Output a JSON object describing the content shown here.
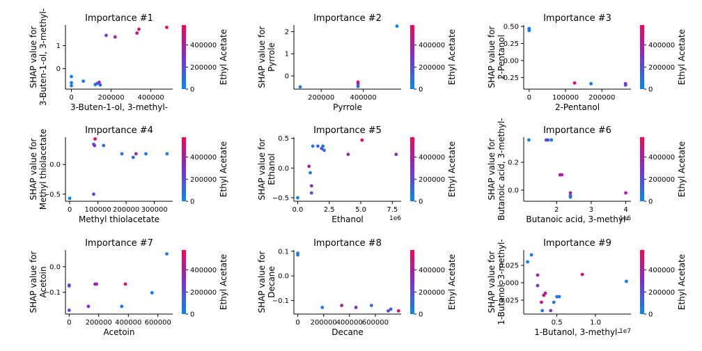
{
  "colorbar": {
    "label": "Ethyl Acetate",
    "ticks": [
      "0",
      "200000",
      "400000"
    ],
    "colors": [
      "#008afb",
      "#7a2fd6",
      "#ff0052"
    ],
    "min": 0,
    "max": 580000
  },
  "chart_data": [
    {
      "type": "scatter",
      "title": "Importance #1",
      "xlabel": "3-Buten-1-ol, 3-methyl-",
      "ylabel": [
        "SHAP value for",
        "3-Buten-1-ol, 3-methyl-"
      ],
      "xlim": [
        -30000,
        510000
      ],
      "ylim": [
        -0.9,
        1.9
      ],
      "xticks": [
        {
          "v": 0,
          "l": "0"
        },
        {
          "v": 200000,
          "l": "200000"
        },
        {
          "v": 400000,
          "l": "400000"
        }
      ],
      "yticks": [
        {
          "v": 1,
          "l": "1"
        },
        {
          "v": 0,
          "l": "0"
        }
      ],
      "x_offset_label": "",
      "points": [
        {
          "x": 0,
          "y": -0.35,
          "c": 20000
        },
        {
          "x": 0,
          "y": -0.62,
          "c": 50000
        },
        {
          "x": 0,
          "y": -0.75,
          "c": 30000
        },
        {
          "x": 60000,
          "y": -0.55,
          "c": 60000
        },
        {
          "x": 120000,
          "y": -0.7,
          "c": 80000
        },
        {
          "x": 130000,
          "y": -0.65,
          "c": 120000
        },
        {
          "x": 140000,
          "y": -0.6,
          "c": 380000
        },
        {
          "x": 145000,
          "y": -0.72,
          "c": 90000
        },
        {
          "x": 175000,
          "y": 1.45,
          "c": 250000
        },
        {
          "x": 220000,
          "y": 1.38,
          "c": 420000
        },
        {
          "x": 330000,
          "y": 1.55,
          "c": 470000
        },
        {
          "x": 340000,
          "y": 1.72,
          "c": 500000
        },
        {
          "x": 480000,
          "y": 1.8,
          "c": 540000
        }
      ]
    },
    {
      "type": "scatter",
      "title": "Importance #2",
      "xlabel": "Pyrrole",
      "ylabel": [
        "SHAP value for",
        "Pyrrole"
      ],
      "xlim": [
        70000,
        580000
      ],
      "ylim": [
        -0.6,
        2.3
      ],
      "xticks": [
        {
          "v": 200000,
          "l": "200000"
        },
        {
          "v": 400000,
          "l": "400000"
        }
      ],
      "yticks": [
        {
          "v": 2,
          "l": "2"
        },
        {
          "v": 1,
          "l": "1"
        },
        {
          "v": 0,
          "l": "0"
        }
      ],
      "x_offset_label": "",
      "points": [
        {
          "x": 100000,
          "y": -0.5,
          "c": 50000
        },
        {
          "x": 375000,
          "y": -0.28,
          "c": 540000
        },
        {
          "x": 375000,
          "y": -0.35,
          "c": 400000
        },
        {
          "x": 375000,
          "y": -0.45,
          "c": 200000
        },
        {
          "x": 375000,
          "y": -0.48,
          "c": 100000
        },
        {
          "x": 560000,
          "y": 2.25,
          "c": 30000
        }
      ]
    },
    {
      "type": "scatter",
      "title": "Importance #3",
      "xlabel": "2-Pentanol",
      "ylabel": [
        "SHAP value for",
        "2-Pentanol"
      ],
      "xlim": [
        -15000,
        280000
      ],
      "ylim": [
        -0.42,
        0.52
      ],
      "xticks": [
        {
          "v": 0,
          "l": "0"
        },
        {
          "v": 100000,
          "l": "100000"
        },
        {
          "v": 200000,
          "l": "200000"
        }
      ],
      "yticks": [
        {
          "v": 0.5,
          "l": "0.50"
        },
        {
          "v": 0.25,
          "l": "0.25"
        },
        {
          "v": 0,
          "l": "0.00"
        },
        {
          "v": -0.25,
          "l": "−0.25"
        }
      ],
      "x_offset_label": "",
      "points": [
        {
          "x": 0,
          "y": 0.47,
          "c": 30000
        },
        {
          "x": 0,
          "y": 0.45,
          "c": 60000
        },
        {
          "x": 0,
          "y": 0.44,
          "c": 90000
        },
        {
          "x": 125000,
          "y": -0.33,
          "c": 500000
        },
        {
          "x": 170000,
          "y": -0.34,
          "c": 60000
        },
        {
          "x": 265000,
          "y": -0.34,
          "c": 400000
        },
        {
          "x": 265000,
          "y": -0.36,
          "c": 200000
        }
      ]
    },
    {
      "type": "scatter",
      "title": "Importance #4",
      "xlabel": "Methyl thiolacetate",
      "ylabel": [
        "SHAP value for",
        "Methyl thiolacetate"
      ],
      "xlim": [
        -15000,
        365000
      ],
      "ylim": [
        -0.62,
        0.46
      ],
      "xticks": [
        {
          "v": 0,
          "l": "0"
        },
        {
          "v": 100000,
          "l": "100000"
        },
        {
          "v": 200000,
          "l": "200000"
        },
        {
          "v": 300000,
          "l": "300000"
        }
      ],
      "yticks": [
        {
          "v": 0,
          "l": "0.0"
        },
        {
          "v": -0.5,
          "l": "−0.5"
        }
      ],
      "x_offset_label": "",
      "points": [
        {
          "x": 0,
          "y": -0.57,
          "c": 20000
        },
        {
          "x": 85000,
          "y": -0.5,
          "c": 250000
        },
        {
          "x": 85000,
          "y": 0.34,
          "c": 120000
        },
        {
          "x": 88000,
          "y": 0.32,
          "c": 300000
        },
        {
          "x": 90000,
          "y": 0.43,
          "c": 540000
        },
        {
          "x": 120000,
          "y": 0.32,
          "c": 90000
        },
        {
          "x": 185000,
          "y": 0.18,
          "c": 60000
        },
        {
          "x": 225000,
          "y": 0.12,
          "c": 80000
        },
        {
          "x": 235000,
          "y": 0.18,
          "c": 350000
        },
        {
          "x": 270000,
          "y": 0.18,
          "c": 60000
        },
        {
          "x": 345000,
          "y": 0.18,
          "c": 40000
        }
      ]
    },
    {
      "type": "scatter",
      "title": "Importance #5",
      "xlabel": "Ethanol",
      "ylabel": [
        "SHAP value for",
        "Ethanol"
      ],
      "xlim": [
        -300000,
        8200000
      ],
      "ylim": [
        -0.56,
        0.52
      ],
      "xticks": [
        {
          "v": 0,
          "l": "0.0"
        },
        {
          "v": 2500000,
          "l": "2.5"
        },
        {
          "v": 5000000,
          "l": "5.0"
        },
        {
          "v": 7500000,
          "l": "7.5"
        }
      ],
      "yticks": [
        {
          "v": 0.5,
          "l": "0.5"
        },
        {
          "v": 0,
          "l": "0.0"
        },
        {
          "v": -0.5,
          "l": "−0.5"
        }
      ],
      "x_offset_label": "1e6",
      "points": [
        {
          "x": 0,
          "y": -0.5,
          "c": 30000
        },
        {
          "x": 900000,
          "y": 0.03,
          "c": 400000
        },
        {
          "x": 1000000,
          "y": -0.08,
          "c": 60000
        },
        {
          "x": 1100000,
          "y": -0.3,
          "c": 300000
        },
        {
          "x": 1100000,
          "y": -0.42,
          "c": 200000
        },
        {
          "x": 1200000,
          "y": 0.37,
          "c": 80000
        },
        {
          "x": 1600000,
          "y": 0.37,
          "c": 120000
        },
        {
          "x": 1900000,
          "y": 0.33,
          "c": 200000
        },
        {
          "x": 2000000,
          "y": 0.37,
          "c": 60000
        },
        {
          "x": 2100000,
          "y": 0.3,
          "c": 90000
        },
        {
          "x": 4000000,
          "y": 0.23,
          "c": 350000
        },
        {
          "x": 5100000,
          "y": 0.47,
          "c": 560000
        },
        {
          "x": 7800000,
          "y": 0.23,
          "c": 300000
        }
      ]
    },
    {
      "type": "scatter",
      "title": "Importance #6",
      "xlabel": "Butanoic acid, 3-methyl-",
      "ylabel": [
        "SHAP value for",
        "Butanoic acid, 3-methyl-"
      ],
      "xlim": [
        1050000,
        4150000
      ],
      "ylim": [
        -0.08,
        0.38
      ],
      "xticks": [
        {
          "v": 2000000,
          "l": "2"
        },
        {
          "v": 3000000,
          "l": "3"
        },
        {
          "v": 4000000,
          "l": "4"
        }
      ],
      "yticks": [
        {
          "v": 0.2,
          "l": "0.2"
        },
        {
          "v": 0,
          "l": "0.0"
        }
      ],
      "x_offset_label": "1e6",
      "points": [
        {
          "x": 1200000,
          "y": 0.36,
          "c": 30000
        },
        {
          "x": 1700000,
          "y": 0.36,
          "c": 250000
        },
        {
          "x": 1750000,
          "y": 0.36,
          "c": 200000
        },
        {
          "x": 1850000,
          "y": 0.36,
          "c": 60000
        },
        {
          "x": 2100000,
          "y": 0.11,
          "c": 420000
        },
        {
          "x": 2150000,
          "y": 0.11,
          "c": 380000
        },
        {
          "x": 2400000,
          "y": -0.02,
          "c": 400000
        },
        {
          "x": 2400000,
          "y": -0.04,
          "c": 150000
        },
        {
          "x": 2400000,
          "y": -0.05,
          "c": 60000
        },
        {
          "x": 4000000,
          "y": -0.02,
          "c": 400000
        }
      ]
    },
    {
      "type": "scatter",
      "title": "Importance #7",
      "xlabel": "Acetoin",
      "ylabel": [
        "SHAP value for",
        "Acetoin"
      ],
      "xlim": [
        -25000,
        700000
      ],
      "ylim": [
        -0.185,
        0.065
      ],
      "xticks": [
        {
          "v": 0,
          "l": "0"
        },
        {
          "v": 200000,
          "l": "200000"
        },
        {
          "v": 400000,
          "l": "400000"
        },
        {
          "v": 600000,
          "l": "600000"
        }
      ],
      "yticks": [
        {
          "v": 0,
          "l": "0.0"
        },
        {
          "v": -0.1,
          "l": "−0.1"
        }
      ],
      "x_offset_label": "",
      "points": [
        {
          "x": 0,
          "y": -0.072,
          "c": 60000
        },
        {
          "x": 0,
          "y": -0.075,
          "c": 250000
        },
        {
          "x": 0,
          "y": -0.17,
          "c": 250000
        },
        {
          "x": 130000,
          "y": -0.155,
          "c": 300000
        },
        {
          "x": 175000,
          "y": -0.068,
          "c": 400000
        },
        {
          "x": 185000,
          "y": -0.068,
          "c": 350000
        },
        {
          "x": 355000,
          "y": -0.155,
          "c": 80000
        },
        {
          "x": 380000,
          "y": -0.068,
          "c": 500000
        },
        {
          "x": 560000,
          "y": -0.102,
          "c": 60000
        },
        {
          "x": 660000,
          "y": 0.05,
          "c": 40000
        }
      ]
    },
    {
      "type": "scatter",
      "title": "Importance #8",
      "xlabel": "Decane",
      "ylabel": [
        "SHAP value for",
        "Decane"
      ],
      "xlim": [
        -30000,
        800000
      ],
      "ylim": [
        -0.155,
        0.105
      ],
      "xticks": [
        {
          "v": 0,
          "l": "0"
        },
        {
          "v": 200000,
          "l": "200000"
        },
        {
          "v": 400000,
          "l": "400000"
        },
        {
          "v": 600000,
          "l": "600000"
        }
      ],
      "yticks": [
        {
          "v": 0.1,
          "l": "0.1"
        },
        {
          "v": 0,
          "l": "0.0"
        },
        {
          "v": -0.1,
          "l": "−0.1"
        }
      ],
      "x_offset_label": "",
      "points": [
        {
          "x": 0,
          "y": 0.092,
          "c": 30000
        },
        {
          "x": 0,
          "y": 0.085,
          "c": 60000
        },
        {
          "x": 190000,
          "y": -0.128,
          "c": 60000
        },
        {
          "x": 340000,
          "y": -0.12,
          "c": 400000
        },
        {
          "x": 450000,
          "y": -0.128,
          "c": 300000
        },
        {
          "x": 570000,
          "y": -0.12,
          "c": 100000
        },
        {
          "x": 700000,
          "y": -0.142,
          "c": 250000
        },
        {
          "x": 720000,
          "y": -0.135,
          "c": 150000
        },
        {
          "x": 780000,
          "y": -0.142,
          "c": 500000
        }
      ]
    },
    {
      "type": "scatter",
      "title": "Importance #9",
      "xlabel": "1-Butanol, 3-methyl-",
      "ylabel": [
        "SHAP value for",
        "1-Butanol, 3-methyl-"
      ],
      "xlim": [
        700000,
        14600000
      ],
      "ylim": [
        -0.045,
        0.047
      ],
      "xticks": [
        {
          "v": 5000000,
          "l": "0.5"
        },
        {
          "v": 10000000,
          "l": "1.0"
        }
      ],
      "yticks": [
        {
          "v": 0.025,
          "l": "0.025"
        },
        {
          "v": 0,
          "l": "0.000"
        },
        {
          "v": -0.025,
          "l": "−0.025"
        }
      ],
      "x_offset_label": "1e7",
      "points": [
        {
          "x": 1200000,
          "y": 0.03,
          "c": 50000
        },
        {
          "x": 1700000,
          "y": 0.04,
          "c": 40000
        },
        {
          "x": 2500000,
          "y": 0.011,
          "c": 380000
        },
        {
          "x": 2500000,
          "y": -0.004,
          "c": 300000
        },
        {
          "x": 3000000,
          "y": -0.028,
          "c": 480000
        },
        {
          "x": 3300000,
          "y": -0.018,
          "c": 500000
        },
        {
          "x": 3500000,
          "y": -0.015,
          "c": 400000
        },
        {
          "x": 3100000,
          "y": -0.04,
          "c": 60000
        },
        {
          "x": 4200000,
          "y": -0.04,
          "c": 250000
        },
        {
          "x": 4600000,
          "y": -0.028,
          "c": 80000
        },
        {
          "x": 5000000,
          "y": -0.02,
          "c": 40000
        },
        {
          "x": 5300000,
          "y": -0.02,
          "c": 80000
        },
        {
          "x": 8300000,
          "y": 0.012,
          "c": 520000
        },
        {
          "x": 14000000,
          "y": 0.002,
          "c": 60000
        }
      ]
    }
  ]
}
